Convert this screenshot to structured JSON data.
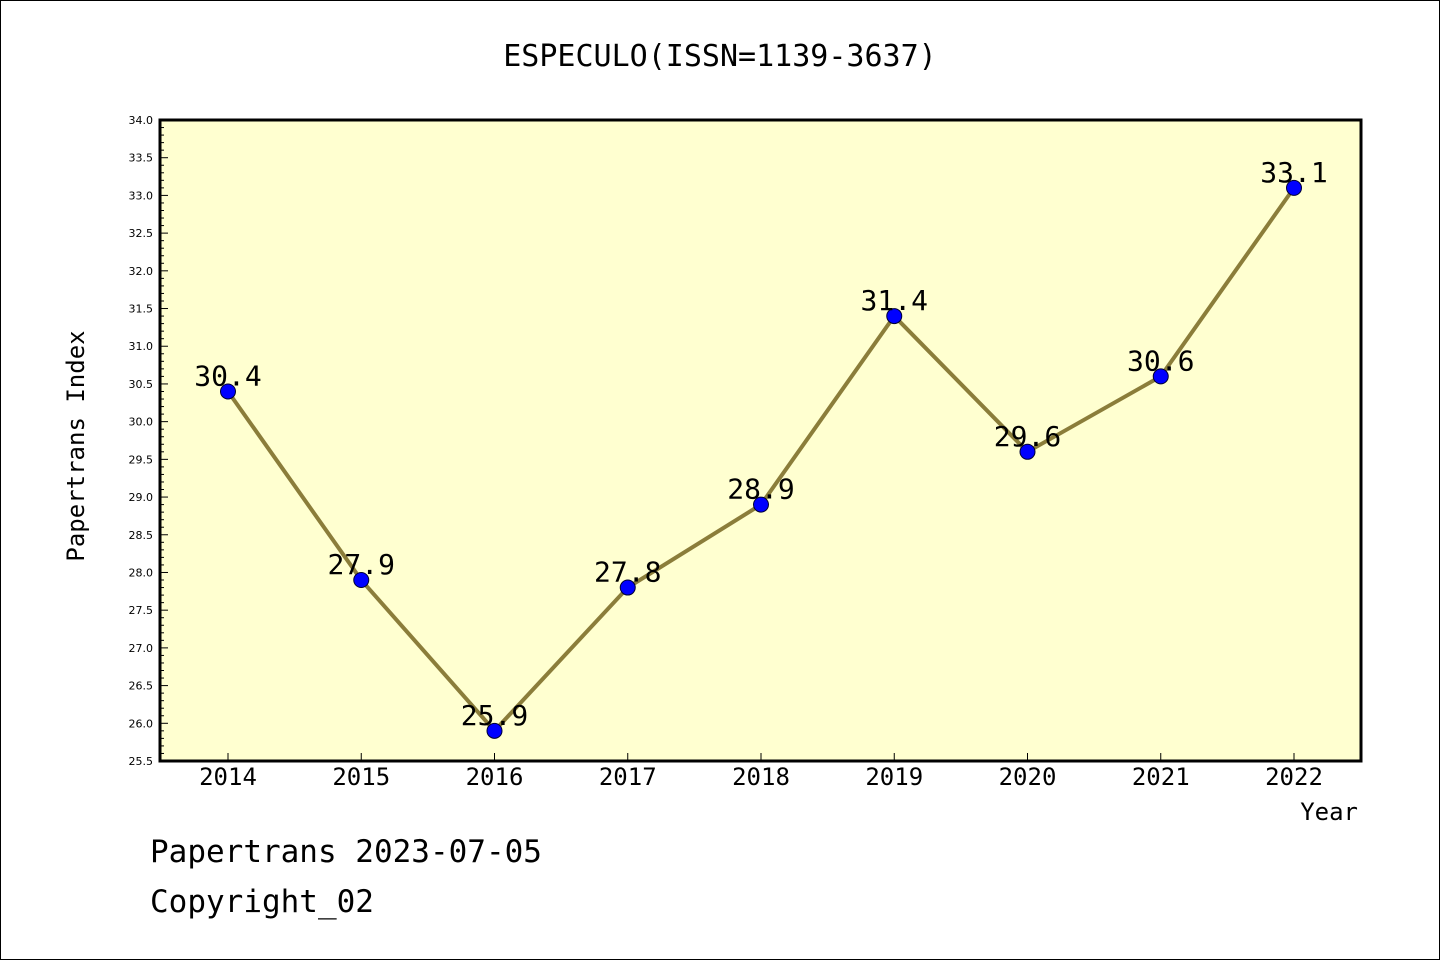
{
  "chart_data": {
    "type": "line",
    "title": "ESPECULO(ISSN=1139-3637)",
    "xlabel": "Year",
    "ylabel": "Papertrans Index",
    "x": [
      "2014",
      "2015",
      "2016",
      "2017",
      "2018",
      "2019",
      "2020",
      "2021",
      "2022"
    ],
    "series": [
      {
        "values": [
          30.4,
          27.9,
          25.9,
          27.8,
          28.9,
          31.4,
          29.6,
          30.6,
          33.1
        ],
        "labels": [
          "30.4",
          "27.9",
          "25.9",
          "27.8",
          "28.9",
          "31.4",
          "29.6",
          "30.6",
          "33.1"
        ],
        "line_color": "#8b7d3a",
        "marker_color": "#0000ff"
      }
    ],
    "ylim": [
      25.5,
      34.0
    ],
    "yticks": [
      "25.5",
      "26.0",
      "26.5",
      "27.0",
      "27.5",
      "28.0",
      "28.5",
      "29.0",
      "29.5",
      "30.0",
      "30.5",
      "31.0",
      "31.5",
      "32.0",
      "32.5",
      "33.0",
      "33.5",
      "34.0"
    ],
    "plot_background": "#ffffd0",
    "grid": false,
    "legend": "none"
  },
  "footer": {
    "line1": "Papertrans 2023-07-05",
    "line2": "Copyright_02"
  }
}
